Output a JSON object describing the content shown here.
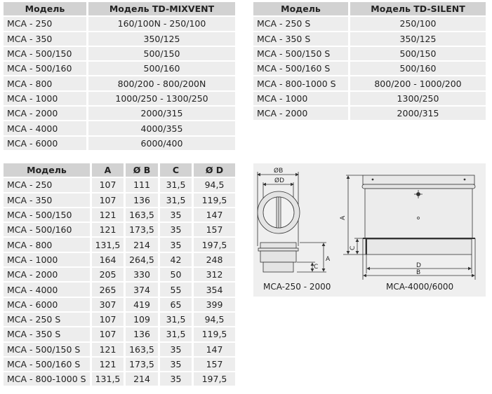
{
  "mixvent_table": {
    "headers": [
      "Модель",
      "Модель TD-MIXVENT"
    ],
    "rows": [
      [
        "MCA - 250",
        "160/100N - 250/100"
      ],
      [
        "MCA - 350",
        "350/125"
      ],
      [
        "MCA - 500/150",
        "500/150"
      ],
      [
        "MCA - 500/160",
        "500/160"
      ],
      [
        "MCA - 800",
        "800/200 - 800/200N"
      ],
      [
        "MCA - 1000",
        "1000/250 - 1300/250"
      ],
      [
        "MCA - 2000",
        "2000/315"
      ],
      [
        "MCA - 4000",
        "4000/355"
      ],
      [
        "MCA - 6000",
        "6000/400"
      ]
    ]
  },
  "silent_table": {
    "headers": [
      "Модель",
      "Модель TD-SILENT"
    ],
    "rows": [
      [
        "MCA - 250 S",
        "250/100"
      ],
      [
        "MCA - 350 S",
        "350/125"
      ],
      [
        "MCA - 500/150 S",
        "500/150"
      ],
      [
        "MCA - 500/160 S",
        "500/160"
      ],
      [
        "MCA - 800-1000 S",
        "800/200 - 1000/200"
      ],
      [
        "MCA - 1000",
        "1300/250"
      ],
      [
        "MCA - 2000",
        "2000/315"
      ]
    ]
  },
  "dimensions_table": {
    "headers": [
      "Модель",
      "A",
      "Ø B",
      "C",
      "Ø D"
    ],
    "rows": [
      [
        "MCA - 250",
        "107",
        "111",
        "31,5",
        "94,5"
      ],
      [
        "MCA - 350",
        "107",
        "136",
        "31,5",
        "119,5"
      ],
      [
        "MCA - 500/150",
        "121",
        "163,5",
        "35",
        "147"
      ],
      [
        "MCA - 500/160",
        "121",
        "173,5",
        "35",
        "157"
      ],
      [
        "MCA - 800",
        "131,5",
        "214",
        "35",
        "197,5"
      ],
      [
        "MCA - 1000",
        "164",
        "264,5",
        "42",
        "248"
      ],
      [
        "MCA - 2000",
        "205",
        "330",
        "50",
        "312"
      ],
      [
        "MCA - 4000",
        "265",
        "374",
        "55",
        "354"
      ],
      [
        "MCA - 6000",
        "307",
        "419",
        "65",
        "399"
      ],
      [
        "MCA - 250 S",
        "107",
        "109",
        "31,5",
        "94,5"
      ],
      [
        "MCA - 350 S",
        "107",
        "136",
        "31,5",
        "119,5"
      ],
      [
        "MCA - 500/150 S",
        "121",
        "163,5",
        "35",
        "147"
      ],
      [
        "MCA - 500/160 S",
        "121",
        "173,5",
        "35",
        "157"
      ],
      [
        "MCA - 800-1000 S",
        "131,5",
        "214",
        "35",
        "197,5"
      ]
    ]
  },
  "diagram": {
    "left": {
      "caption": "MCA-250 - 2000",
      "labels": {
        "b": "ØB",
        "d": "ØD",
        "a": "A",
        "c": "C"
      }
    },
    "right": {
      "caption": "MCA-4000/6000",
      "labels": {
        "a": "A",
        "c": "C",
        "d": "D",
        "b": "B"
      }
    }
  }
}
